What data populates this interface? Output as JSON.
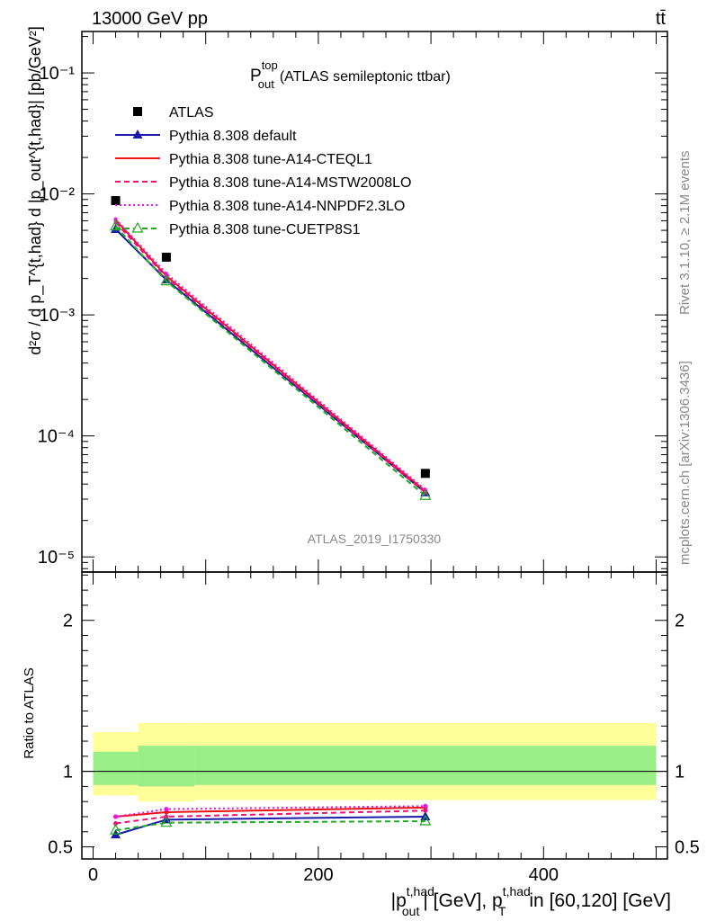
{
  "header": {
    "energy_label": "13000 GeV pp",
    "process_label": "tt̄"
  },
  "side_labels": {
    "rivet": "Rivet 3.1.10, ≥ 2.1M events",
    "mcplots": "mcplots.cern.ch [arXiv:1306.3436]"
  },
  "chart_data": [
    {
      "type": "line",
      "title_main": "P",
      "title_sup": "top",
      "title_sub": "out",
      "title_rest": "(ATLAS semileptonic ttbar)",
      "analysis_id": "ATLAS_2019_I1750330",
      "ylabel": "d²σ / d p_T^{t,had} d |p_out^{t,had}| [pb/GeV²]",
      "yscale": "log",
      "ylim": [
        7.5e-06,
        0.22
      ],
      "xlim": [
        -10,
        510
      ],
      "ytick_labels": [
        "10⁻⁵",
        "10⁻⁴",
        "10⁻³",
        "10⁻²",
        "10⁻¹"
      ],
      "legend_position": "top-left",
      "x": [
        20,
        65,
        295
      ],
      "series": [
        {
          "name": "ATLAS",
          "color": "#000000",
          "marker": "square",
          "values": [
            0.0088,
            0.003,
            4.9e-05
          ]
        },
        {
          "name": "Pythia 8.308 default",
          "color": "#1a1aaa",
          "marker": "filled-triangle",
          "dash": "solid",
          "values": [
            0.0051,
            0.00195,
            3.4e-05
          ]
        },
        {
          "name": "Pythia 8.308 tune-A14-CTEQL1",
          "color": "#ee1111",
          "marker": "none",
          "dash": "solid",
          "values": [
            0.0061,
            0.0021,
            3.5e-05
          ]
        },
        {
          "name": "Pythia 8.308 tune-A14-MSTW2008LO",
          "color": "#ee1177",
          "marker": "none",
          "dash": "dashed",
          "values": [
            0.0058,
            0.00205,
            3.4e-05
          ]
        },
        {
          "name": "Pythia 8.308 tune-A14-NNPDF2.3LO",
          "color": "#ee11ee",
          "marker": "none",
          "dash": "dotted",
          "values": [
            0.0062,
            0.0022,
            3.6e-05
          ]
        },
        {
          "name": "Pythia 8.308 tune-CUETP8S1",
          "color": "#22aa22",
          "marker": "open-triangle",
          "dash": "dashed",
          "values": [
            0.0054,
            0.0019,
            3.2e-05
          ]
        }
      ]
    },
    {
      "type": "line",
      "ylabel": "Ratio to ATLAS",
      "xlabel_main": "|p",
      "xlabel_sup": "t,had",
      "xlabel_sub": "out",
      "xlabel_mid": "| [GeV], p",
      "xlabel_sup2": "t,had",
      "xlabel_sub2": "T",
      "xlabel_rest": "in [60,120] [GeV]",
      "ylim": [
        0.42,
        2.32
      ],
      "xlim": [
        -10,
        510
      ],
      "yticks": [
        0.5,
        1,
        2
      ],
      "ytick_labels": [
        "0.5",
        "1",
        "2"
      ],
      "xticks": [
        0,
        200,
        400
      ],
      "xtick_labels": [
        "0",
        "200",
        "400"
      ],
      "reference_line": 1,
      "bands": [
        {
          "x0": 0,
          "x1": 40,
          "green": [
            0.91,
            1.13
          ],
          "yellow": [
            0.84,
            1.26
          ]
        },
        {
          "x0": 40,
          "x1": 90,
          "green": [
            0.9,
            1.17
          ],
          "yellow": [
            0.8,
            1.32
          ]
        },
        {
          "x0": 90,
          "x1": 500,
          "green": [
            0.91,
            1.17
          ],
          "yellow": [
            0.81,
            1.32
          ]
        }
      ],
      "x": [
        20,
        65,
        295
      ],
      "series": [
        {
          "name": "Pythia 8.308 default",
          "color": "#1a1aaa",
          "dash": "solid",
          "marker": "filled-triangle",
          "values": [
            0.58,
            0.68,
            0.7
          ]
        },
        {
          "name": "Pythia 8.308 tune-A14-CTEQL1",
          "color": "#ee1111",
          "dash": "solid",
          "marker": "none",
          "values": [
            0.7,
            0.73,
            0.76
          ]
        },
        {
          "name": "Pythia 8.308 tune-A14-MSTW2008LO",
          "color": "#ee1177",
          "dash": "dashed",
          "marker": "none",
          "values": [
            0.655,
            0.7,
            0.74
          ]
        },
        {
          "name": "Pythia 8.308 tune-A14-NNPDF2.3LO",
          "color": "#ee11ee",
          "dash": "dotted",
          "marker": "none",
          "values": [
            0.7,
            0.75,
            0.77
          ]
        },
        {
          "name": "Pythia 8.308 tune-CUETP8S1",
          "color": "#22aa22",
          "dash": "dashed",
          "marker": "open-triangle",
          "values": [
            0.61,
            0.66,
            0.67
          ]
        }
      ]
    }
  ]
}
